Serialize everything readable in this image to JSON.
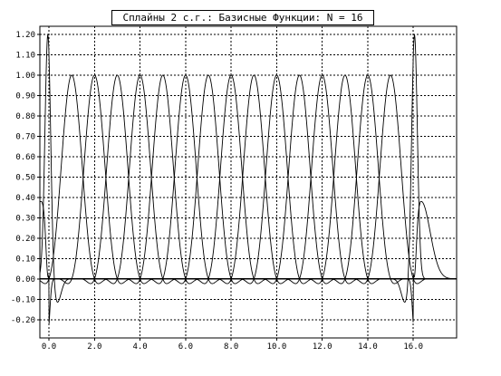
{
  "chart_data": {
    "type": "line",
    "title": "Сплайны 2 с.г.: Базисные Функции: N = 16",
    "xlabel": "",
    "ylabel": "",
    "xlim": [
      -0.4,
      17.9
    ],
    "ylim": [
      -0.29,
      1.24
    ],
    "x_ticks": [
      "0.0",
      "2.0",
      "4.0",
      "6.0",
      "8.0",
      "10.0",
      "12.0",
      "14.0",
      "16.0"
    ],
    "x_tick_values": [
      0,
      2,
      4,
      6,
      8,
      10,
      12,
      14,
      16
    ],
    "y_ticks": [
      "-0.20",
      "-0.10",
      "0.00",
      "0.10",
      "0.20",
      "0.30",
      "0.40",
      "0.50",
      "0.60",
      "0.70",
      "0.80",
      "0.90",
      "1.00",
      "1.10",
      "1.20"
    ],
    "y_tick_values": [
      -0.2,
      -0.1,
      0.0,
      0.1,
      0.2,
      0.3,
      0.4,
      0.5,
      0.6,
      0.7,
      0.8,
      0.9,
      1.0,
      1.1,
      1.2
    ],
    "grid": true,
    "line_color": "#000000",
    "grid_color": "#000000",
    "series_description_values": {
      "N": 16,
      "peak_value": 1.0,
      "side_lobe_min": -0.07,
      "edge_curve_max": 1.24,
      "edge_curve_min": -0.27
    }
  }
}
